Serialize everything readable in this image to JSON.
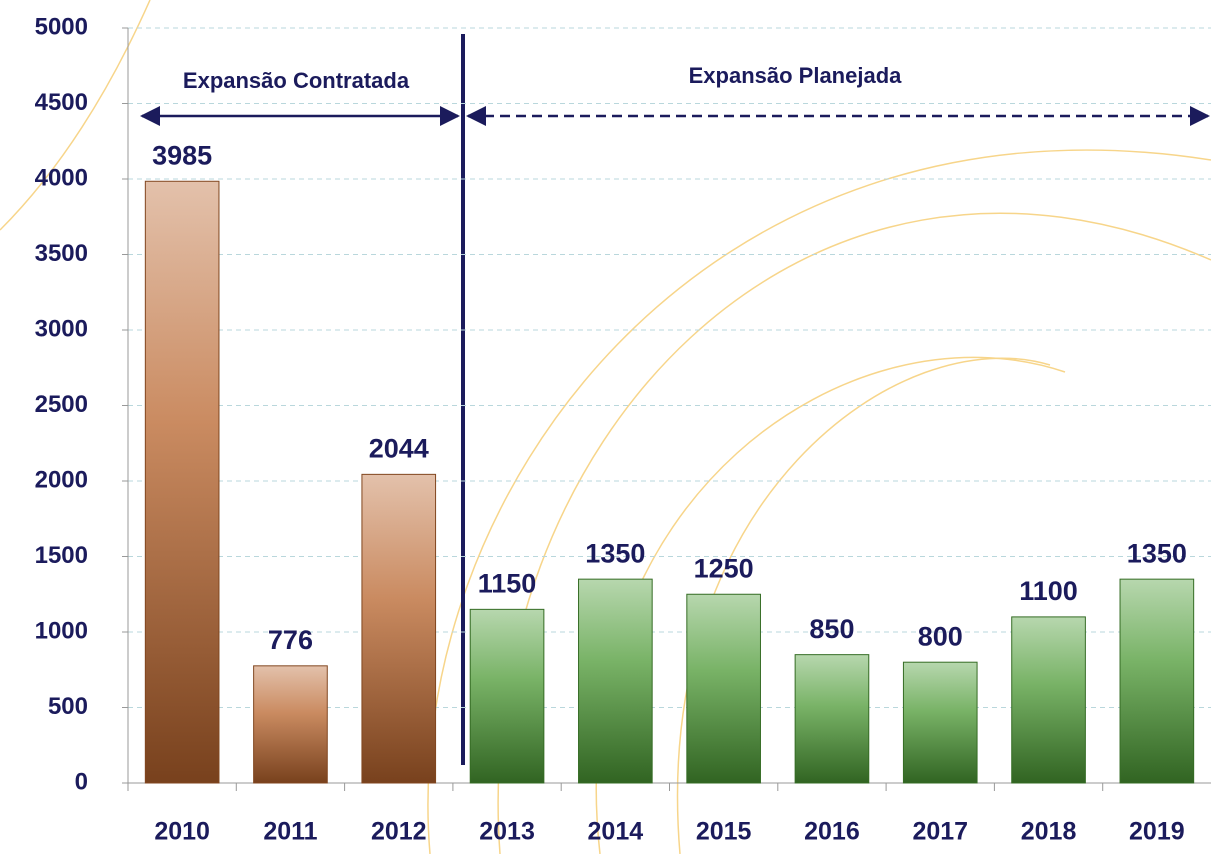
{
  "chart_data": {
    "type": "bar",
    "categories": [
      "2010",
      "2011",
      "2012",
      "2013",
      "2014",
      "2015",
      "2016",
      "2017",
      "2018",
      "2019"
    ],
    "values": [
      3985,
      776,
      2044,
      1150,
      1350,
      1250,
      850,
      800,
      1100,
      1350
    ],
    "colors": [
      "#b8642c",
      "#b8642c",
      "#b8642c",
      "#4c9a34",
      "#4c9a34",
      "#4c9a34",
      "#4c9a34",
      "#4c9a34",
      "#4c9a34",
      "#4c9a34"
    ],
    "ylim": [
      0,
      5000
    ],
    "yticks": [
      0,
      500,
      1000,
      1500,
      2000,
      2500,
      3000,
      3500,
      4000,
      4500,
      5000
    ],
    "grid": true,
    "annotations": [
      "Expansão Contratada",
      "Expansão Planejada"
    ]
  }
}
